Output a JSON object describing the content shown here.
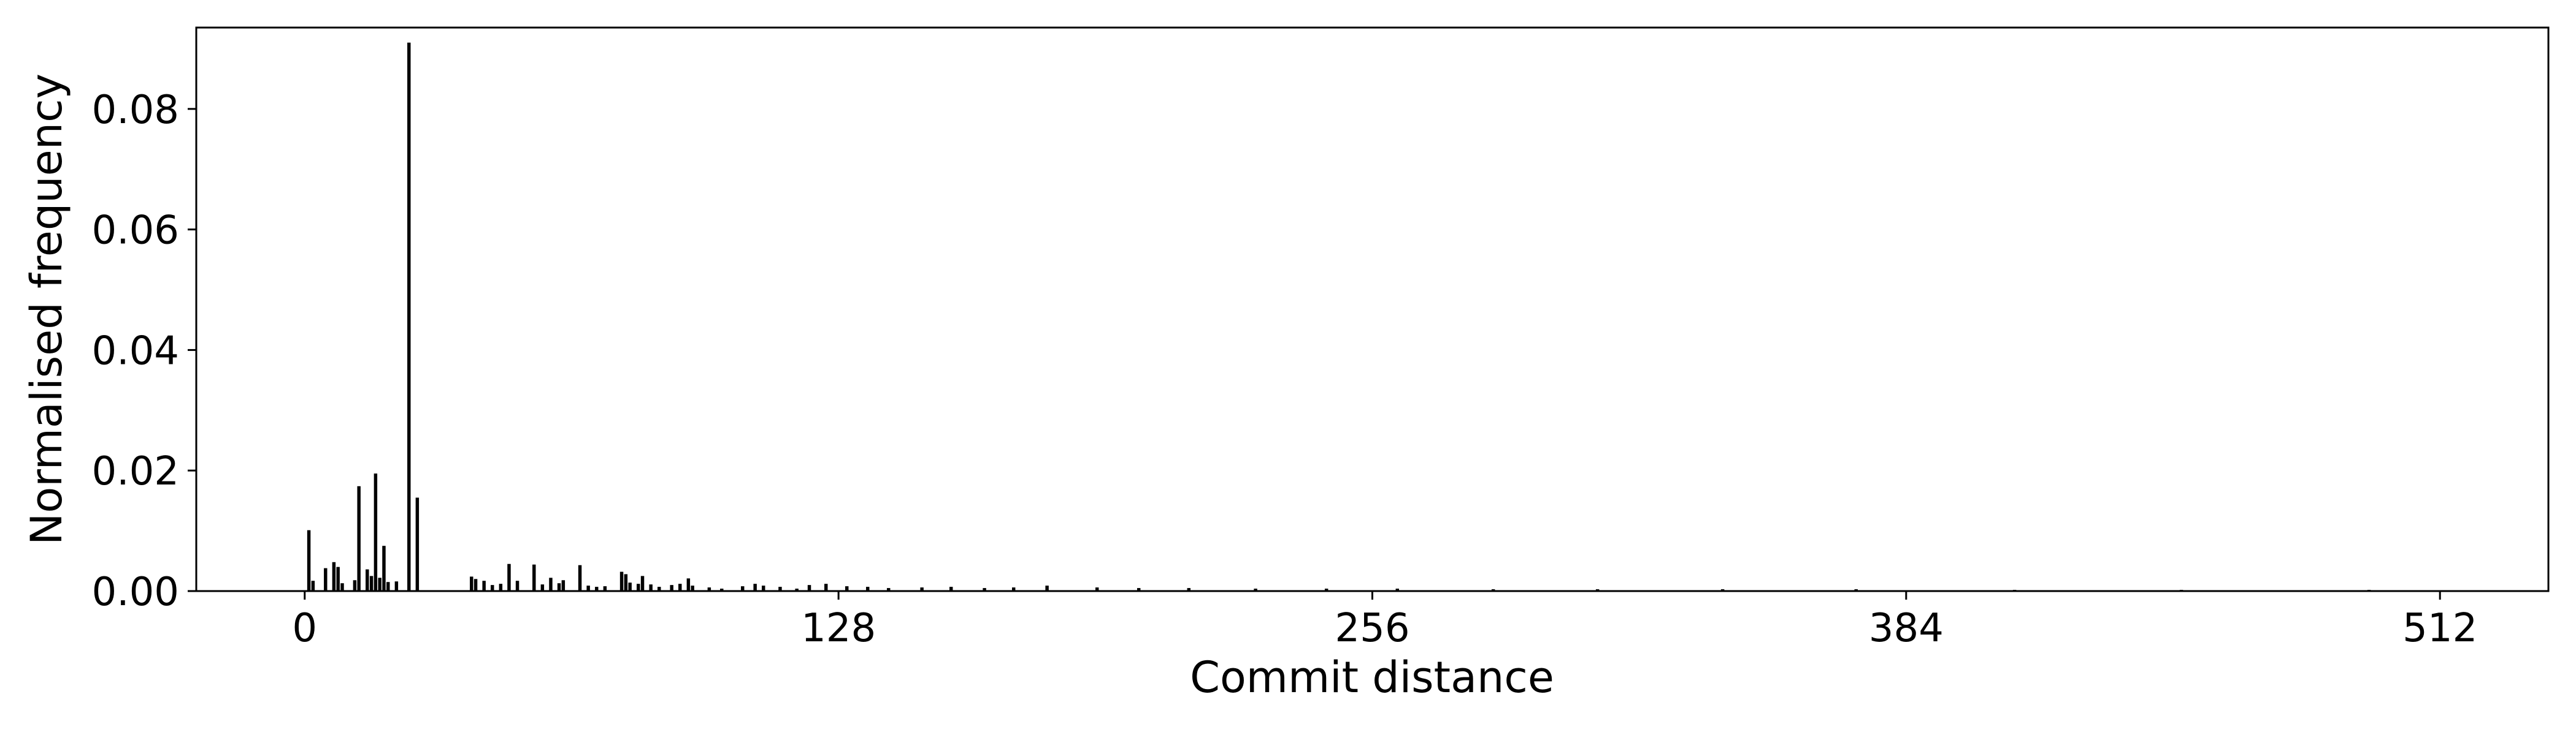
{
  "chart_data": {
    "type": "bar",
    "title": "",
    "xlabel": "Commit distance",
    "ylabel": "Normalised frequency",
    "xlim": [
      -26,
      538
    ],
    "ylim": [
      0,
      0.0935
    ],
    "xticks": [
      0,
      128,
      256,
      384,
      512
    ],
    "xtick_labels": [
      "0",
      "128",
      "256",
      "384",
      "512"
    ],
    "yticks": [
      0,
      0.02,
      0.04,
      0.06,
      0.08
    ],
    "ytick_labels": [
      "0.00",
      "0.02",
      "0.04",
      "0.06",
      "0.08"
    ],
    "grid": false,
    "legend": "none",
    "bar_color": "#000000",
    "x": [
      1,
      2,
      5,
      7,
      8,
      9,
      12,
      13,
      15,
      16,
      17,
      18,
      19,
      20,
      22,
      25,
      27,
      40,
      41,
      43,
      45,
      47,
      49,
      51,
      55,
      57,
      59,
      61,
      62,
      66,
      68,
      70,
      72,
      76,
      77,
      78,
      80,
      81,
      83,
      85,
      88,
      90,
      92,
      93,
      97,
      100,
      105,
      108,
      110,
      114,
      118,
      121,
      125,
      130,
      135,
      140,
      148,
      155,
      163,
      170,
      178,
      190,
      200,
      212,
      228,
      245,
      262,
      285,
      310,
      340,
      372,
      410,
      450,
      495
    ],
    "values": [
      0.0101,
      0.0017,
      0.0038,
      0.0048,
      0.004,
      0.0013,
      0.0018,
      0.0174,
      0.0036,
      0.0025,
      0.0195,
      0.0022,
      0.0075,
      0.0015,
      0.0016,
      0.091,
      0.0155,
      0.0024,
      0.002,
      0.0017,
      0.001,
      0.0012,
      0.0045,
      0.0017,
      0.0044,
      0.0011,
      0.0022,
      0.0013,
      0.0018,
      0.0043,
      0.0009,
      0.0007,
      0.0008,
      0.0032,
      0.0028,
      0.0014,
      0.0012,
      0.0025,
      0.0011,
      0.0007,
      0.001,
      0.0012,
      0.0021,
      0.0009,
      0.0006,
      0.0004,
      0.0008,
      0.0012,
      0.0009,
      0.0007,
      0.0004,
      0.001,
      0.0012,
      0.0008,
      0.0007,
      0.0005,
      0.0006,
      0.0007,
      0.0005,
      0.0006,
      0.0009,
      0.0006,
      0.0005,
      0.0005,
      0.0004,
      0.0004,
      0.0004,
      0.0003,
      0.0003,
      0.0003,
      0.0003,
      0.0002,
      0.0002,
      0.0002
    ]
  }
}
